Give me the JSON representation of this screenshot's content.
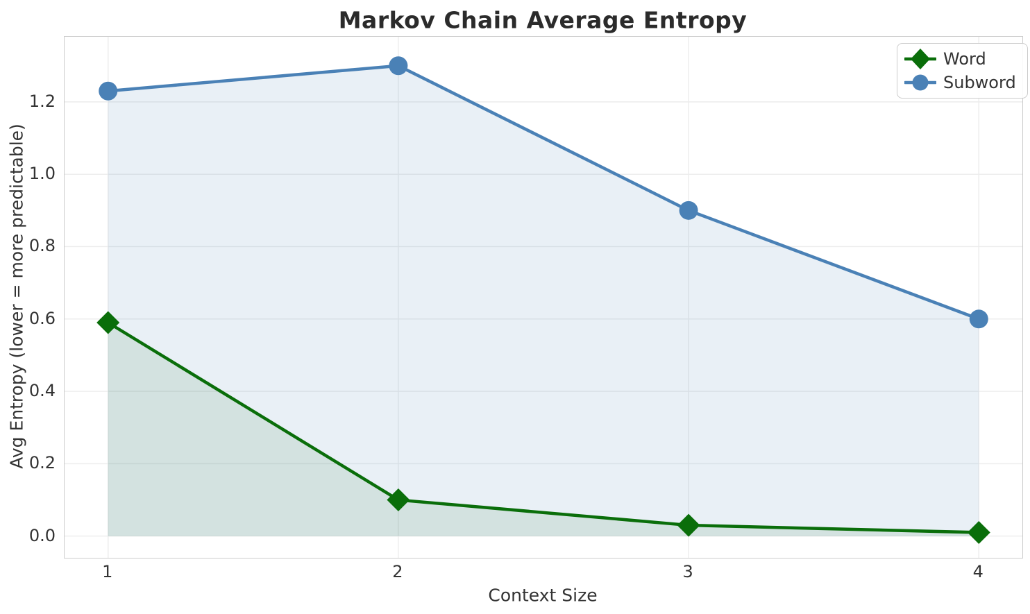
{
  "figure": {
    "title": "Markov Chain Average Entropy",
    "xlabel": "Context Size",
    "ylabel": "Avg Entropy (lower = more predictable)"
  },
  "chart_data": {
    "type": "line",
    "title": "Markov Chain Average Entropy",
    "xlabel": "Context Size",
    "ylabel": "Avg Entropy (lower = more predictable)",
    "x": [
      1,
      2,
      3,
      4
    ],
    "xtick_labels": [
      "1",
      "2",
      "3",
      "4"
    ],
    "yticks": [
      0.0,
      0.2,
      0.4,
      0.6,
      0.8,
      1.0,
      1.2
    ],
    "ytick_labels": [
      "0.0",
      "0.2",
      "0.4",
      "0.6",
      "0.8",
      "1.0",
      "1.2"
    ],
    "xlim": [
      0.85,
      4.15
    ],
    "ylim": [
      -0.06,
      1.38
    ],
    "grid": true,
    "legend_position": "upper right",
    "fill_to_zero": true,
    "series": [
      {
        "name": "Word",
        "values": [
          0.59,
          0.1,
          0.03,
          0.01
        ],
        "color": "#0a6e0a",
        "marker": "diamond",
        "fill_opacity": 0.1
      },
      {
        "name": "Subword",
        "values": [
          1.23,
          1.3,
          0.9,
          0.6
        ],
        "color": "#4a81b6",
        "marker": "circle",
        "fill_opacity": 0.12
      }
    ]
  },
  "colors": {
    "word_green": "#0a6e0a",
    "subword_blue": "#4a81b6",
    "grid": "#ececec",
    "spine": "#cccccc",
    "tick_text": "#333333",
    "title_text": "#2b2b2b"
  }
}
